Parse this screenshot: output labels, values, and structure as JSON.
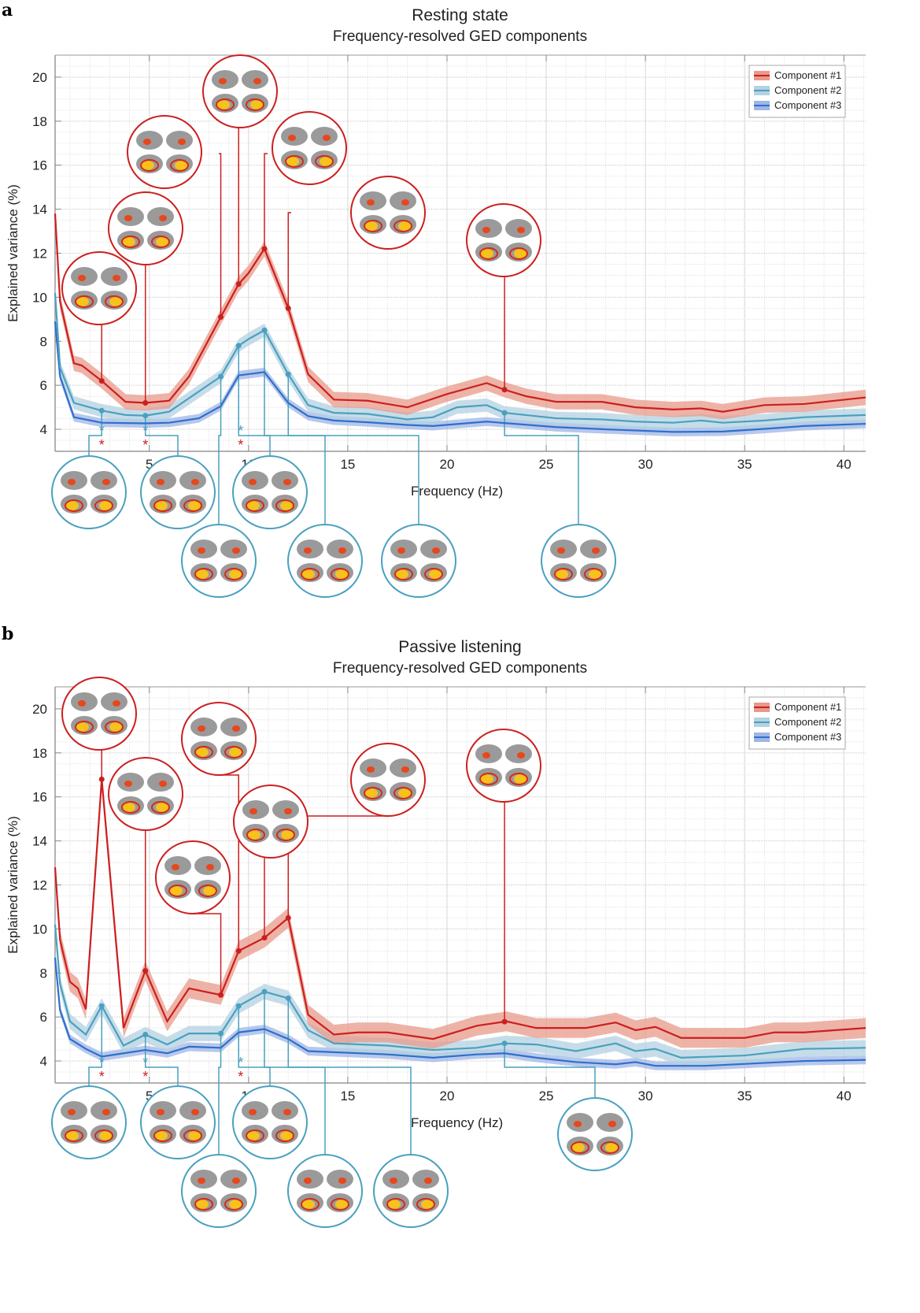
{
  "panels": [
    {
      "label": "a",
      "title": "Resting state",
      "subtitle": "Frequency-resolved GED components"
    },
    {
      "label": "b",
      "title": "Passive listening",
      "subtitle": "Frequency-resolved GED components"
    }
  ],
  "colors": {
    "component1": "#cc1f1f",
    "component1_band": "#e8998a",
    "component2": "#4aa0bf",
    "component2_band": "#b3d2e2",
    "component3": "#2f6fcc",
    "component3_band": "#9fb6e6",
    "star_blue": "#4aa0bf",
    "star_red": "#cc1f1f"
  },
  "chart_data": [
    {
      "type": "line",
      "title": "Resting state",
      "subtitle": "Frequency-resolved GED components",
      "xlabel": "Frequency (Hz)",
      "ylabel": "Explained variance (%)",
      "xlim": [
        0.25,
        41.1
      ],
      "ylim": [
        3.0,
        21.0
      ],
      "xticks": [
        5,
        10,
        15,
        20,
        25,
        30,
        35,
        40
      ],
      "xtick_labels": [
        "5",
        "10",
        "15",
        "20",
        "25",
        "30",
        "35",
        "40"
      ],
      "yticks": [
        4,
        6,
        8,
        10,
        12,
        14,
        16,
        18,
        20
      ],
      "ytick_labels": [
        "4",
        "6",
        "8",
        "10",
        "12",
        "14",
        "16",
        "18",
        "20"
      ],
      "grid": true,
      "legend": {
        "placement": "top-right",
        "entries": [
          "Component #1",
          "Component #2",
          "Component #3"
        ]
      },
      "series": [
        {
          "name": "Component #1",
          "x": [
            0.25,
            0.5,
            1.2,
            1.6,
            2.6,
            3.8,
            4.8,
            6.0,
            7.0,
            8.6,
            9.5,
            10.0,
            10.8,
            12.0,
            13.0,
            14.3,
            16.0,
            18.0,
            20.0,
            22.0,
            22.9,
            24.0,
            25.5,
            27.8,
            29.5,
            31.4,
            32.8,
            33.9,
            36.0,
            38.0,
            41.1
          ],
          "y": [
            13.8,
            9.8,
            7.0,
            6.9,
            6.2,
            5.25,
            5.2,
            5.3,
            6.4,
            9.1,
            10.6,
            11.1,
            12.2,
            9.5,
            6.5,
            5.35,
            5.3,
            5.0,
            5.6,
            6.1,
            5.8,
            5.5,
            5.25,
            5.25,
            5.0,
            4.9,
            4.95,
            4.8,
            5.1,
            5.15,
            5.45
          ],
          "band": 0.35,
          "markers_x": [
            2.6,
            4.8,
            8.6,
            9.5,
            10.8,
            12.0,
            22.9
          ]
        },
        {
          "name": "Component #2",
          "x": [
            0.25,
            0.5,
            1.2,
            2.6,
            3.8,
            4.8,
            6.0,
            8.6,
            9.5,
            10.0,
            10.8,
            12.0,
            13.0,
            14.3,
            16.0,
            18.0,
            19.3,
            20.5,
            22.0,
            22.9,
            25.5,
            27.8,
            29.5,
            31.4,
            32.8,
            33.9,
            36.0,
            38.0,
            41.1
          ],
          "y": [
            10.2,
            6.8,
            5.2,
            4.85,
            4.65,
            4.62,
            4.8,
            6.4,
            7.8,
            8.1,
            8.5,
            6.5,
            5.1,
            4.75,
            4.7,
            4.45,
            4.55,
            5.0,
            5.1,
            4.75,
            4.5,
            4.45,
            4.35,
            4.3,
            4.4,
            4.3,
            4.4,
            4.55,
            4.65
          ],
          "band": 0.3,
          "markers_x": [
            2.6,
            4.8,
            8.6,
            9.5,
            10.8,
            12.0,
            22.9
          ]
        },
        {
          "name": "Component #3",
          "x": [
            0.25,
            0.5,
            1.2,
            2.6,
            4.8,
            6.0,
            7.5,
            8.6,
            9.5,
            10.8,
            12.0,
            13.0,
            14.3,
            16.0,
            18.0,
            19.3,
            22.0,
            25.5,
            28.0,
            31.4,
            33.9,
            36.0,
            38.0,
            41.1
          ],
          "y": [
            8.9,
            6.4,
            4.55,
            4.3,
            4.27,
            4.3,
            4.5,
            5.05,
            6.45,
            6.6,
            5.2,
            4.6,
            4.4,
            4.32,
            4.2,
            4.15,
            4.35,
            4.1,
            4.0,
            3.88,
            3.9,
            4.02,
            4.15,
            4.25
          ],
          "band": 0.2
        }
      ],
      "significance": [
        {
          "x": 2.6,
          "stars": [
            "blue",
            "red"
          ]
        },
        {
          "x": 4.8,
          "stars": [
            "blue",
            "red"
          ]
        },
        {
          "x": 9.6,
          "stars": [
            "blue",
            "red"
          ]
        }
      ]
    },
    {
      "type": "line",
      "title": "Passive listening",
      "subtitle": "Frequency-resolved GED components",
      "xlabel": "Frequency (Hz)",
      "ylabel": "Explained variance (%)",
      "xlim": [
        0.25,
        41.1
      ],
      "ylim": [
        3.0,
        21.0
      ],
      "xticks": [
        5,
        10,
        15,
        20,
        25,
        30,
        35,
        40
      ],
      "xtick_labels": [
        "5",
        "10",
        "15",
        "20",
        "25",
        "30",
        "35",
        "40"
      ],
      "yticks": [
        4,
        6,
        8,
        10,
        12,
        14,
        16,
        18,
        20
      ],
      "ytick_labels": [
        "4",
        "6",
        "8",
        "10",
        "12",
        "14",
        "16",
        "18",
        "20"
      ],
      "grid": true,
      "legend": {
        "placement": "top-right",
        "entries": [
          "Component #1",
          "Component #2",
          "Component #3"
        ]
      },
      "series": [
        {
          "name": "Component #1",
          "x": [
            0.25,
            0.5,
            1.0,
            1.4,
            1.8,
            2.6,
            3.7,
            4.8,
            5.9,
            7.0,
            8.6,
            9.5,
            10.8,
            12.0,
            13.0,
            14.3,
            15.5,
            17.0,
            19.3,
            21.5,
            23.0,
            24.5,
            27.0,
            28.5,
            29.5,
            30.5,
            31.8,
            35.0,
            36.5,
            38.0,
            41.1
          ],
          "y": [
            12.8,
            9.5,
            7.6,
            7.3,
            6.35,
            16.8,
            5.5,
            8.1,
            5.8,
            7.3,
            7.0,
            9.0,
            9.6,
            10.5,
            6.1,
            5.2,
            5.3,
            5.3,
            5.0,
            5.6,
            5.8,
            5.5,
            5.5,
            5.75,
            5.4,
            5.55,
            5.05,
            5.05,
            5.3,
            5.3,
            5.5
          ],
          "band": 0.45,
          "markers_x": [
            2.6,
            4.8,
            8.6,
            9.5,
            10.8,
            12.0,
            22.9
          ]
        },
        {
          "name": "Component #2",
          "x": [
            0.25,
            0.5,
            1.0,
            1.8,
            2.6,
            3.7,
            4.8,
            5.9,
            7.0,
            8.6,
            9.5,
            10.8,
            12.0,
            13.0,
            14.3,
            17.0,
            19.3,
            21.5,
            22.9,
            24.5,
            26.5,
            28.5,
            29.5,
            30.5,
            31.8,
            35.0,
            38.0,
            41.1
          ],
          "y": [
            10.2,
            7.5,
            5.8,
            5.2,
            6.5,
            4.7,
            5.2,
            4.75,
            5.25,
            5.25,
            6.5,
            7.15,
            6.85,
            5.4,
            4.8,
            4.7,
            4.5,
            4.6,
            4.8,
            4.75,
            4.45,
            4.8,
            4.45,
            4.55,
            4.15,
            4.25,
            4.55,
            4.6
          ],
          "band": 0.35,
          "markers_x": [
            2.6,
            4.8,
            8.6,
            9.5,
            10.8,
            12.0,
            22.9
          ]
        },
        {
          "name": "Component #3",
          "x": [
            0.25,
            0.5,
            1.0,
            1.8,
            2.6,
            3.7,
            4.8,
            5.9,
            7.0,
            8.6,
            9.5,
            10.8,
            12.0,
            13.0,
            14.3,
            17.0,
            19.3,
            21.5,
            22.9,
            24.5,
            26.5,
            28.5,
            29.5,
            30.5,
            33.0,
            38.0,
            41.1
          ],
          "y": [
            8.7,
            6.3,
            5.0,
            4.55,
            4.2,
            4.35,
            4.5,
            4.35,
            4.65,
            4.6,
            5.3,
            5.45,
            5.0,
            4.45,
            4.4,
            4.3,
            4.15,
            4.3,
            4.35,
            4.15,
            3.95,
            3.85,
            3.95,
            3.78,
            3.78,
            4.0,
            4.05
          ],
          "band": 0.2
        }
      ],
      "significance": [
        {
          "x": 2.6,
          "stars": [
            "blue",
            "red"
          ]
        },
        {
          "x": 4.8,
          "stars": [
            "blue",
            "red"
          ]
        },
        {
          "x": 9.6,
          "stars": [
            "blue",
            "red"
          ]
        }
      ]
    }
  ]
}
